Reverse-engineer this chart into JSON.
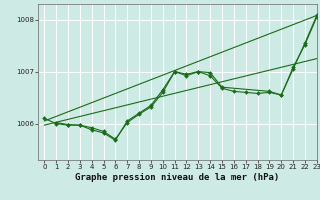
{
  "title": "Graphe pression niveau de la mer (hPa)",
  "bg_color": "#ceeae4",
  "line_color": "#1a6b1a",
  "xlim": [
    -0.5,
    23
  ],
  "ylim": [
    1005.3,
    1008.3
  ],
  "yticks": [
    1006,
    1007,
    1008
  ],
  "xticks": [
    0,
    1,
    2,
    3,
    4,
    5,
    6,
    7,
    8,
    9,
    10,
    11,
    12,
    13,
    14,
    15,
    16,
    17,
    18,
    19,
    20,
    21,
    22,
    23
  ],
  "series": [
    {
      "x": [
        0,
        23
      ],
      "y": [
        1006.05,
        1008.08
      ],
      "marker": false,
      "lw": 0.8
    },
    {
      "x": [
        0,
        23
      ],
      "y": [
        1005.97,
        1007.25
      ],
      "marker": false,
      "lw": 0.8
    },
    {
      "x": [
        0,
        1,
        2,
        3,
        4,
        5,
        6,
        7,
        8,
        9,
        10,
        11,
        12,
        13,
        14,
        15,
        16,
        17,
        18,
        19,
        20,
        21,
        22,
        23
      ],
      "y": [
        1006.1,
        1006.0,
        1005.97,
        1005.97,
        1005.88,
        1005.82,
        1005.68,
        1006.05,
        1006.2,
        1006.35,
        1006.65,
        1007.0,
        1006.92,
        1007.0,
        1006.92,
        1006.68,
        1006.62,
        1006.6,
        1006.58,
        1006.6,
        1006.55,
        1007.05,
        1007.55,
        1008.08
      ],
      "marker": true,
      "lw": 0.8
    },
    {
      "x": [
        1,
        2,
        3,
        4,
        5,
        6,
        7,
        8,
        9,
        10,
        11,
        12,
        13,
        14,
        15,
        19,
        20,
        21,
        22,
        23
      ],
      "y": [
        1006.02,
        1005.98,
        1005.97,
        1005.92,
        1005.85,
        1005.7,
        1006.02,
        1006.18,
        1006.32,
        1006.6,
        1007.0,
        1006.95,
        1007.0,
        1006.98,
        1006.7,
        1006.62,
        1006.55,
        1007.08,
        1007.52,
        1008.05
      ],
      "marker": true,
      "lw": 0.8
    }
  ],
  "grid_color": "#ffffff",
  "tick_fontsize": 5.0,
  "title_fontsize": 6.5,
  "title_fontweight": "bold"
}
